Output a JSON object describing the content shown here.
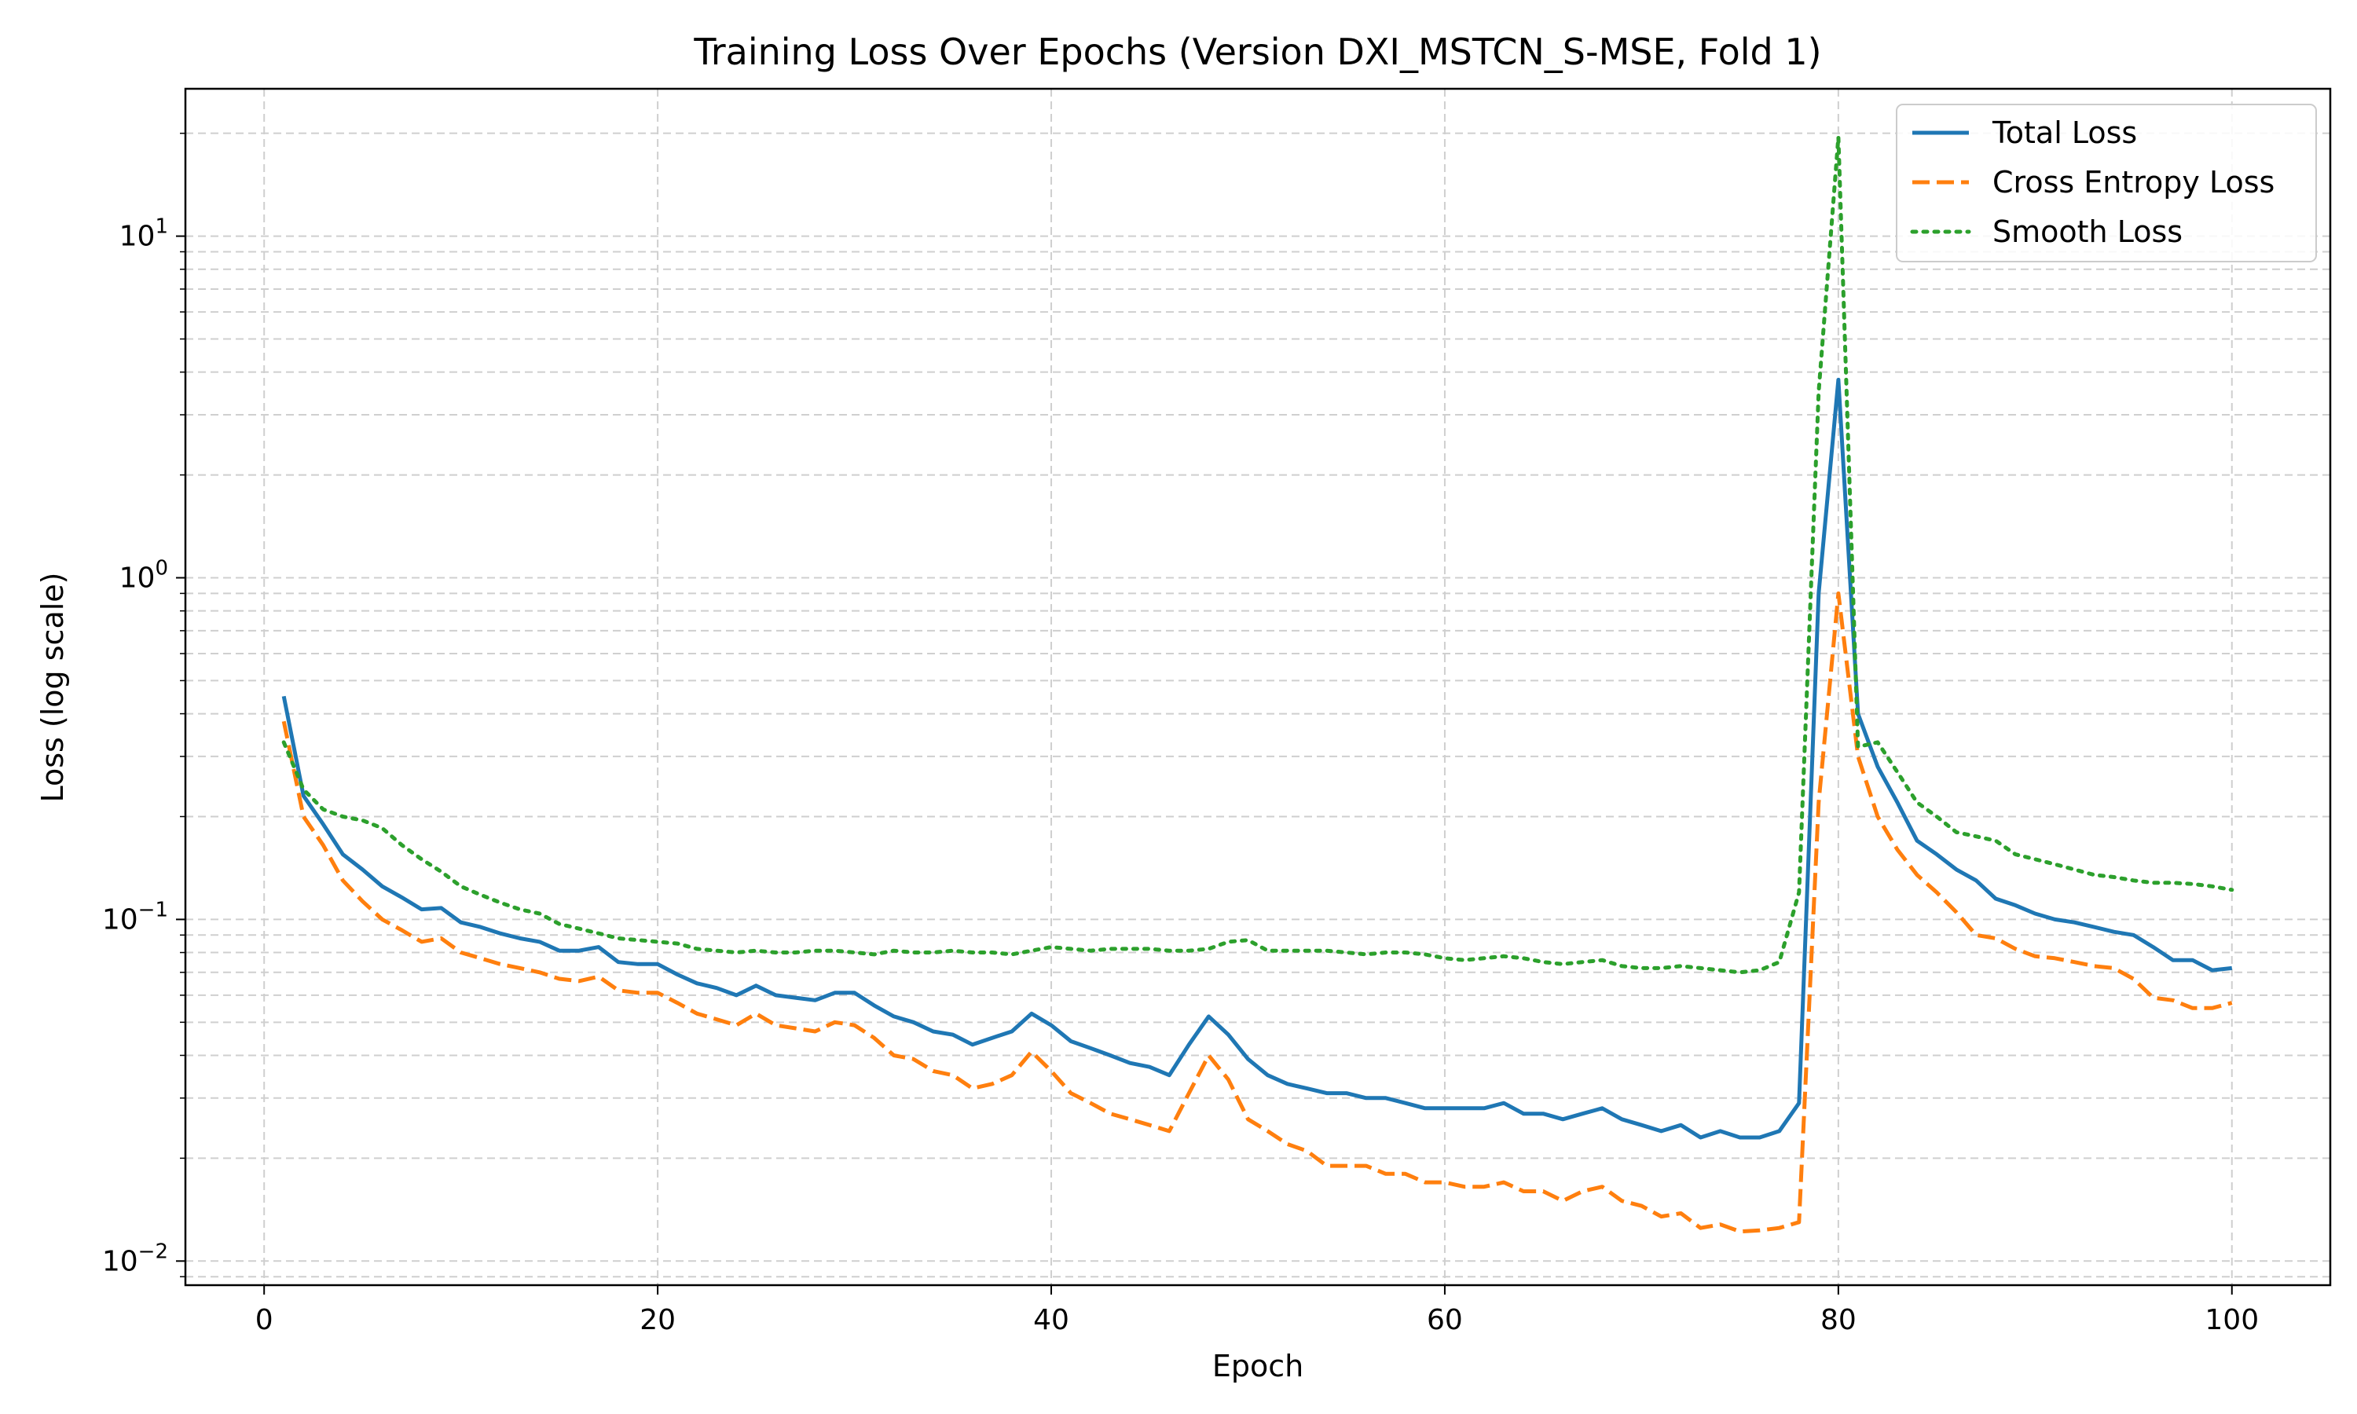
{
  "chart_data": {
    "type": "line",
    "title": "Training Loss Over Epochs (Version DXI_MSTCN_S-MSE, Fold 1)",
    "xlabel": "Epoch",
    "ylabel": "Loss (log scale)",
    "yscale": "log",
    "xlim": [
      -4,
      105
    ],
    "ylim": [
      0.0085,
      27
    ],
    "xticks": [
      0,
      20,
      40,
      60,
      80,
      100
    ],
    "xtick_labels": [
      "0",
      "20",
      "40",
      "60",
      "80",
      "100"
    ],
    "yticks": [
      0.01,
      0.1,
      1,
      10
    ],
    "ytick_labels": [
      {
        "base": "10",
        "exp": "−2"
      },
      {
        "base": "10",
        "exp": "−1"
      },
      {
        "base": "10",
        "exp": "0"
      },
      {
        "base": "10",
        "exp": "1"
      }
    ],
    "grid": true,
    "legend_position": "top-right",
    "x": [
      1,
      2,
      3,
      4,
      5,
      6,
      7,
      8,
      9,
      10,
      11,
      12,
      13,
      14,
      15,
      16,
      17,
      18,
      19,
      20,
      21,
      22,
      23,
      24,
      25,
      26,
      27,
      28,
      29,
      30,
      31,
      32,
      33,
      34,
      35,
      36,
      37,
      38,
      39,
      40,
      41,
      42,
      43,
      44,
      45,
      46,
      47,
      48,
      49,
      50,
      51,
      52,
      53,
      54,
      55,
      56,
      57,
      58,
      59,
      60,
      61,
      62,
      63,
      64,
      65,
      66,
      67,
      68,
      69,
      70,
      71,
      72,
      73,
      74,
      75,
      76,
      77,
      78,
      79,
      80,
      81,
      82,
      83,
      84,
      85,
      86,
      87,
      88,
      89,
      90,
      91,
      92,
      93,
      94,
      95,
      96,
      97,
      98,
      99,
      100
    ],
    "series": [
      {
        "name": "Total Loss",
        "color": "#1f77b4",
        "style": "solid",
        "values": [
          0.45,
          0.23,
          0.19,
          0.155,
          0.14,
          0.125,
          0.116,
          0.107,
          0.108,
          0.098,
          0.095,
          0.091,
          0.088,
          0.086,
          0.081,
          0.081,
          0.083,
          0.075,
          0.074,
          0.074,
          0.069,
          0.065,
          0.063,
          0.06,
          0.064,
          0.06,
          0.059,
          0.058,
          0.061,
          0.061,
          0.056,
          0.052,
          0.05,
          0.047,
          0.046,
          0.043,
          0.045,
          0.047,
          0.053,
          0.049,
          0.044,
          0.042,
          0.04,
          0.038,
          0.037,
          0.035,
          0.043,
          0.052,
          0.046,
          0.039,
          0.035,
          0.033,
          0.032,
          0.031,
          0.031,
          0.03,
          0.03,
          0.029,
          0.028,
          0.028,
          0.028,
          0.028,
          0.029,
          0.027,
          0.027,
          0.026,
          0.027,
          0.028,
          0.026,
          0.025,
          0.024,
          0.025,
          0.023,
          0.024,
          0.023,
          0.023,
          0.024,
          0.029,
          0.9,
          3.8,
          0.4,
          0.28,
          0.22,
          0.17,
          0.155,
          0.14,
          0.13,
          0.115,
          0.11,
          0.104,
          0.1,
          0.098,
          0.095,
          0.092,
          0.09,
          0.083,
          0.076,
          0.076,
          0.071,
          0.072
        ]
      },
      {
        "name": "Cross Entropy Loss",
        "color": "#ff7f0e",
        "style": "dashed",
        "values": [
          0.38,
          0.2,
          0.165,
          0.13,
          0.113,
          0.1,
          0.093,
          0.086,
          0.088,
          0.08,
          0.077,
          0.074,
          0.072,
          0.07,
          0.067,
          0.066,
          0.068,
          0.062,
          0.061,
          0.061,
          0.057,
          0.053,
          0.051,
          0.049,
          0.053,
          0.049,
          0.048,
          0.047,
          0.05,
          0.049,
          0.045,
          0.04,
          0.039,
          0.036,
          0.035,
          0.032,
          0.033,
          0.035,
          0.041,
          0.036,
          0.031,
          0.029,
          0.027,
          0.026,
          0.025,
          0.024,
          0.031,
          0.04,
          0.034,
          0.026,
          0.024,
          0.022,
          0.021,
          0.019,
          0.019,
          0.019,
          0.018,
          0.018,
          0.017,
          0.017,
          0.0165,
          0.0165,
          0.017,
          0.016,
          0.016,
          0.015,
          0.016,
          0.0165,
          0.015,
          0.0145,
          0.0135,
          0.0138,
          0.0125,
          0.0128,
          0.0122,
          0.0123,
          0.0125,
          0.013,
          0.22,
          0.9,
          0.3,
          0.2,
          0.16,
          0.135,
          0.12,
          0.105,
          0.09,
          0.088,
          0.082,
          0.078,
          0.077,
          0.075,
          0.073,
          0.072,
          0.067,
          0.059,
          0.058,
          0.055,
          0.055,
          0.057
        ]
      },
      {
        "name": "Smooth Loss",
        "color": "#2ca02c",
        "style": "dotted",
        "values": [
          0.33,
          0.24,
          0.21,
          0.2,
          0.195,
          0.185,
          0.165,
          0.15,
          0.138,
          0.125,
          0.118,
          0.112,
          0.107,
          0.104,
          0.097,
          0.094,
          0.091,
          0.088,
          0.087,
          0.086,
          0.085,
          0.082,
          0.081,
          0.08,
          0.081,
          0.08,
          0.08,
          0.081,
          0.081,
          0.08,
          0.079,
          0.081,
          0.08,
          0.08,
          0.081,
          0.08,
          0.08,
          0.079,
          0.081,
          0.083,
          0.082,
          0.081,
          0.082,
          0.082,
          0.082,
          0.081,
          0.081,
          0.082,
          0.086,
          0.087,
          0.081,
          0.081,
          0.081,
          0.081,
          0.08,
          0.079,
          0.08,
          0.08,
          0.079,
          0.077,
          0.076,
          0.077,
          0.078,
          0.077,
          0.075,
          0.074,
          0.075,
          0.076,
          0.073,
          0.072,
          0.072,
          0.073,
          0.072,
          0.071,
          0.07,
          0.071,
          0.075,
          0.12,
          3.5,
          19.5,
          0.32,
          0.33,
          0.27,
          0.22,
          0.2,
          0.18,
          0.175,
          0.17,
          0.155,
          0.15,
          0.145,
          0.14,
          0.135,
          0.133,
          0.13,
          0.128,
          0.128,
          0.127,
          0.125,
          0.122
        ]
      }
    ]
  }
}
